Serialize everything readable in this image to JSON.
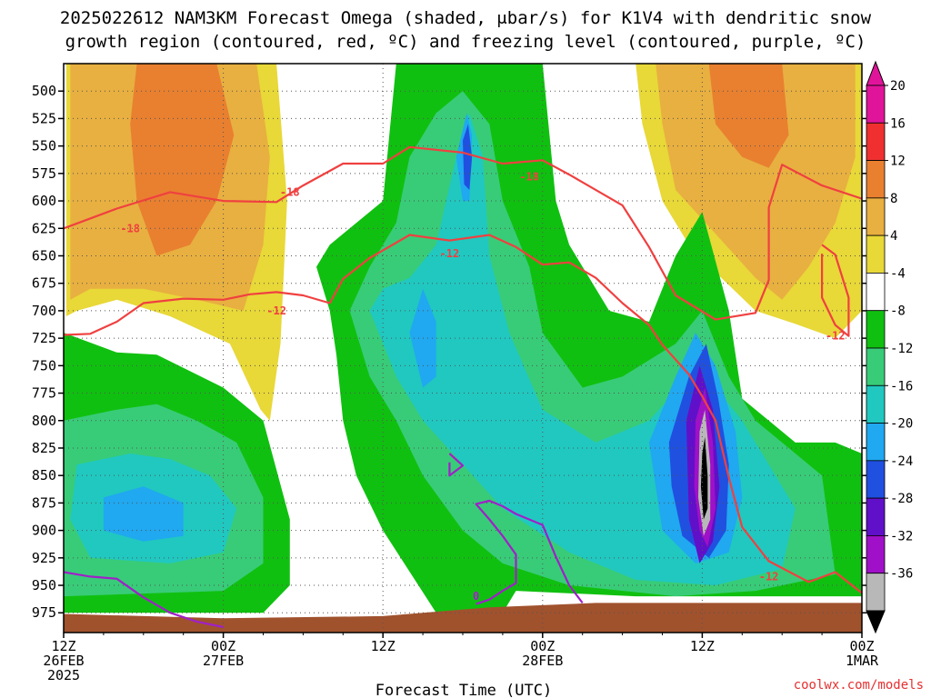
{
  "chart_data": {
    "type": "heatmap",
    "title_line1": "2025022612 NAM3KM Forecast Omega (shaded, μbar/s) for K1V4 with dendritic snow",
    "title_line2": "growth region (contoured, red, ºC) and freezing level (contoured, purple, ºC)",
    "xlabel": "Forecast Time (UTC)",
    "credit": "coolwx.com/models",
    "yaxis": {
      "ticks": [
        500,
        525,
        550,
        575,
        600,
        625,
        650,
        675,
        700,
        725,
        750,
        775,
        800,
        825,
        850,
        875,
        900,
        925,
        950,
        975
      ],
      "range_hpa": [
        475,
        993
      ]
    },
    "xaxis": {
      "range_hours": [
        12,
        72
      ],
      "ticks": [
        {
          "hour": 12,
          "line1": "12Z",
          "line2": "26FEB",
          "line3": "2025"
        },
        {
          "hour": 24,
          "line1": "00Z",
          "line2": "27FEB",
          "line3": ""
        },
        {
          "hour": 36,
          "line1": "12Z",
          "line2": "",
          "line3": ""
        },
        {
          "hour": 48,
          "line1": "00Z",
          "line2": "28FEB",
          "line3": ""
        },
        {
          "hour": 60,
          "line1": "12Z",
          "line2": "",
          "line3": ""
        },
        {
          "hour": 72,
          "line1": "00Z",
          "line2": "1MAR",
          "line3": ""
        }
      ]
    },
    "colorbar": {
      "labels": [
        20,
        16,
        12,
        8,
        4,
        -4,
        -8,
        -12,
        -16,
        -20,
        -24,
        -28,
        -32,
        -36
      ],
      "colors": {
        "pos20": "#e0149a",
        "pos16": "#f03030",
        "pos12": "#e88030",
        "pos8": "#e8b040",
        "pos4": "#e8d838",
        "neutral": "#ffffff",
        "neg4": "#10c010",
        "neg8": "#38cc78",
        "neg12": "#20c8c0",
        "neg16": "#20a8f0",
        "neg20": "#2050e0",
        "neg24": "#6010c8",
        "neg28": "#a010c8",
        "neg32": "#b8b8b8",
        "neg36": "#000000"
      }
    },
    "contours": {
      "dendritic_m18": {
        "label": "-18",
        "color": "#f04040",
        "points": [
          [
            12,
            625
          ],
          [
            16,
            607
          ],
          [
            20,
            592
          ],
          [
            24,
            600
          ],
          [
            28,
            601
          ],
          [
            30,
            586
          ],
          [
            33,
            566
          ],
          [
            36,
            566
          ],
          [
            38,
            551
          ],
          [
            42,
            556
          ],
          [
            45,
            566
          ],
          [
            48,
            563
          ],
          [
            50,
            576
          ],
          [
            54,
            604
          ],
          [
            56,
            642
          ],
          [
            58,
            686
          ],
          [
            61,
            708
          ],
          [
            64,
            702
          ],
          [
            65,
            672
          ],
          [
            65,
            606
          ],
          [
            66,
            567
          ],
          [
            69,
            586
          ],
          [
            72,
            598
          ]
        ]
      },
      "dendritic_m12": {
        "label": "-12",
        "color": "#f04040",
        "points": [
          [
            12,
            722
          ],
          [
            14,
            721
          ],
          [
            16,
            710
          ],
          [
            18,
            693
          ],
          [
            21,
            689
          ],
          [
            24,
            690
          ],
          [
            26,
            685
          ],
          [
            28,
            683
          ],
          [
            30,
            686
          ],
          [
            32,
            693
          ],
          [
            33,
            671
          ],
          [
            35,
            652
          ],
          [
            38,
            631
          ],
          [
            41,
            636
          ],
          [
            44,
            631
          ],
          [
            46,
            642
          ],
          [
            48,
            658
          ],
          [
            50,
            656
          ],
          [
            52,
            670
          ],
          [
            54,
            693
          ],
          [
            56,
            713
          ],
          [
            57,
            731
          ],
          [
            59,
            758
          ],
          [
            60,
            778
          ],
          [
            61,
            800
          ],
          [
            62,
            852
          ],
          [
            63,
            897
          ],
          [
            65,
            928
          ],
          [
            68,
            947
          ],
          [
            70,
            938
          ],
          [
            72,
            957
          ]
        ]
      },
      "dendritic_m12_loop": {
        "label": "-12",
        "color": "#f04040",
        "points": [
          [
            69,
            640
          ],
          [
            70,
            649
          ],
          [
            71,
            688
          ],
          [
            71,
            723
          ],
          [
            70,
            713
          ],
          [
            69,
            688
          ],
          [
            69,
            648
          ]
        ]
      },
      "freezing_0": {
        "label": "0",
        "color": "#a020c8",
        "points": [
          [
            12,
            938
          ],
          [
            14,
            942
          ],
          [
            16,
            944
          ],
          [
            18,
            961
          ],
          [
            20,
            975
          ],
          [
            22,
            983
          ],
          [
            24,
            988
          ]
        ]
      },
      "freezing_0b": {
        "label": "0",
        "color": "#a020c8",
        "points": [
          [
            43,
            967
          ],
          [
            44,
            963
          ],
          [
            45,
            955
          ],
          [
            46,
            948
          ],
          [
            46,
            922
          ],
          [
            45,
            905
          ],
          [
            44,
            890
          ],
          [
            43,
            876
          ],
          [
            44,
            873
          ],
          [
            45,
            878
          ],
          [
            46,
            885
          ],
          [
            48,
            895
          ],
          [
            49,
            924
          ],
          [
            50,
            950
          ],
          [
            51,
            966
          ]
        ]
      },
      "freezing_0c": {
        "label": "0",
        "color": "#a020c8",
        "points": [
          [
            41,
            830
          ],
          [
            42,
            841
          ],
          [
            41,
            850
          ],
          [
            41,
            838
          ]
        ]
      }
    },
    "line_labels": [
      {
        "text": "-18",
        "x": 17,
        "y": 625
      },
      {
        "text": "-18",
        "x": 29,
        "y": 592
      },
      {
        "text": "-18",
        "x": 47,
        "y": 578
      },
      {
        "text": "-12",
        "x": 28,
        "y": 700
      },
      {
        "text": "-12",
        "x": 41,
        "y": 648
      },
      {
        "text": "-12",
        "x": 70,
        "y": 723
      },
      {
        "text": "-12",
        "x": 65,
        "y": 942
      },
      {
        "text": "0",
        "x": 43,
        "y": 960
      }
    ]
  }
}
